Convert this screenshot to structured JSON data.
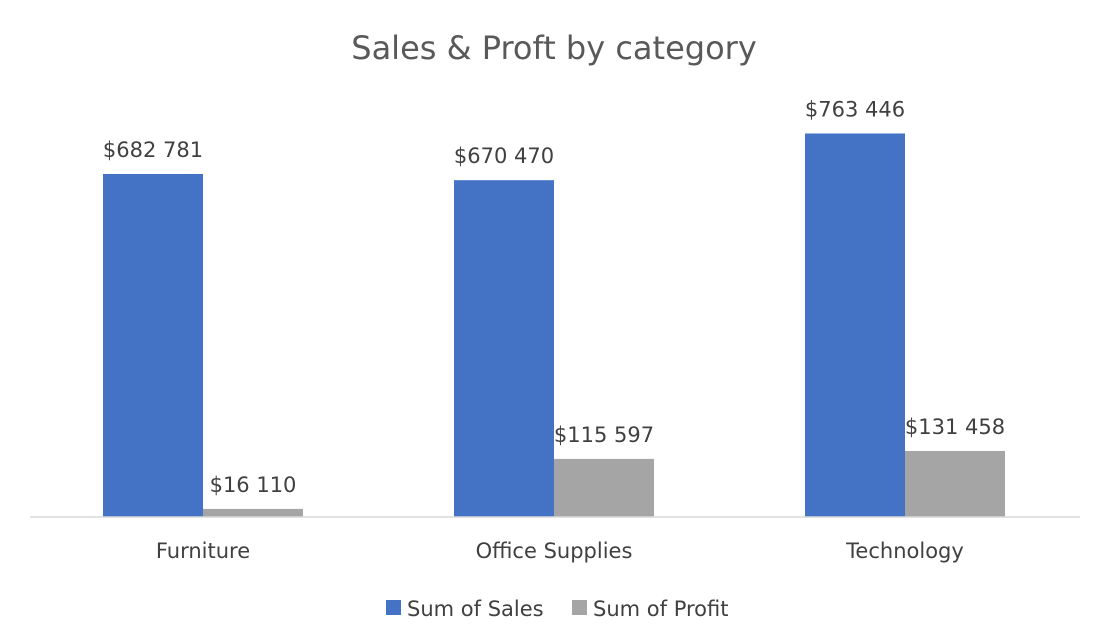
{
  "chart_data": {
    "type": "bar",
    "title": "Sales & Proft by category",
    "categories": [
      "Furniture",
      "Office Supplies",
      "Technology"
    ],
    "series": [
      {
        "name": "Sum of Sales",
        "color": "#4472C4",
        "values": [
          682781,
          670470,
          763446
        ],
        "labels": [
          "$682 781",
          "$670 470",
          "$763 446"
        ]
      },
      {
        "name": "Sum of Profit",
        "color": "#A5A5A5",
        "values": [
          16110,
          115597,
          131458
        ],
        "labels": [
          "$16 110",
          "$115 597",
          "$131 458"
        ]
      }
    ],
    "ylim": [
      0,
      850000
    ],
    "grid": false,
    "legend": "bottom"
  }
}
